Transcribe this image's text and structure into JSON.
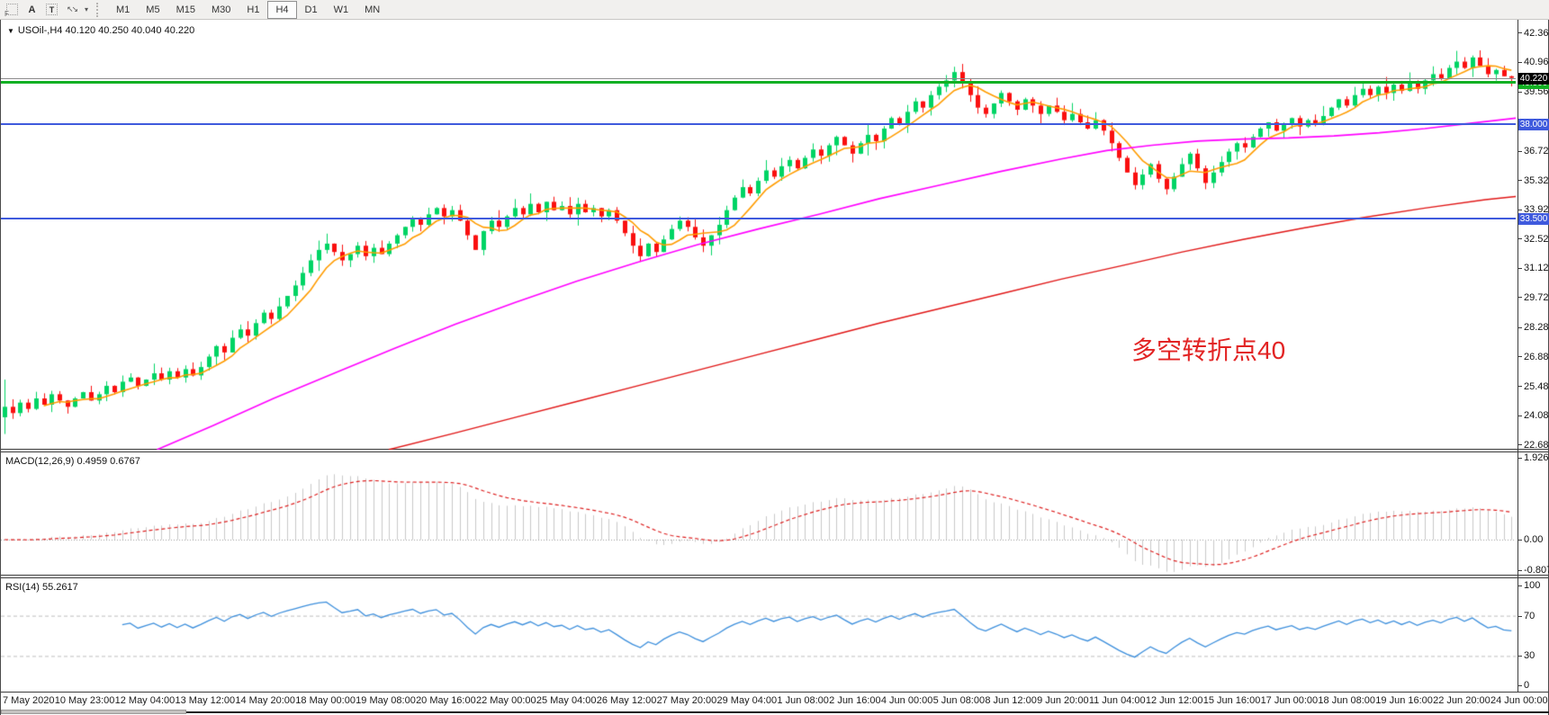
{
  "toolbar": {
    "icon_f_label": "F",
    "text_tool_label": "A",
    "textbox_tool_label": "T",
    "timeframes": [
      {
        "label": "M1",
        "selected": false
      },
      {
        "label": "M5",
        "selected": false
      },
      {
        "label": "M15",
        "selected": false
      },
      {
        "label": "M30",
        "selected": false
      },
      {
        "label": "H1",
        "selected": false
      },
      {
        "label": "H4",
        "selected": true
      },
      {
        "label": "D1",
        "selected": false
      },
      {
        "label": "W1",
        "selected": false
      },
      {
        "label": "MN",
        "selected": false
      }
    ]
  },
  "chart": {
    "title": "USOil-,H4  40.120 40.250 40.040 40.220",
    "annotation": {
      "text": "多空转折点40",
      "color": "#e22424"
    }
  },
  "macd": {
    "label": "MACD(12,26,9) 0.4959 0.6767",
    "axis_labels": [
      "1.9265",
      "0.00",
      "-0.8071"
    ]
  },
  "rsi": {
    "label": "RSI(14) 55.2617",
    "axis_labels": [
      "100",
      "70",
      "30",
      "0"
    ]
  },
  "chart_data": {
    "type": "candlestick",
    "symbol": "USOil",
    "timeframe": "H4",
    "ohlc_current": {
      "open": 40.12,
      "high": 40.25,
      "low": 40.04,
      "close": 40.22
    },
    "price_scale": {
      "top_price": 43.0,
      "bottom_price": 22.45
    },
    "price_ticks": [
      "42.360",
      "40.960",
      "39.560",
      "36.720",
      "35.320",
      "33.920",
      "32.520",
      "31.120",
      "29.720",
      "28.280",
      "26.880",
      "25.480",
      "24.080",
      "22.680"
    ],
    "levels": [
      {
        "label": "40.000",
        "value": 40.0,
        "color": "#12b023",
        "thickness": 3
      },
      {
        "label": "38.000",
        "value": 38.0,
        "color": "#3f5add",
        "thickness": 2
      },
      {
        "label": "33.500",
        "value": 33.5,
        "color": "#3f5add",
        "thickness": 2
      }
    ],
    "bid": {
      "label": "40.220",
      "value": 40.22,
      "line_color": "#8b8b8b",
      "badge_bg": "#000000"
    },
    "colors": {
      "up": "#00d464",
      "down": "#fa0f0f",
      "ma_fast": "#ff9c00",
      "ma_mid": "#ff00ff",
      "ma_slow": "#e01616",
      "macd_hist": "#c9c9c9",
      "macd_signal": "#dd2020",
      "rsi_line": "#3d8fdc",
      "dash_level": "#bdbdbd"
    },
    "closes": [
      24.5,
      24.2,
      24.7,
      24.4,
      24.9,
      24.6,
      25.1,
      24.8,
      24.5,
      24.9,
      25.2,
      24.8,
      25.1,
      25.5,
      25.2,
      25.7,
      25.9,
      25.5,
      25.8,
      26.1,
      25.8,
      26.2,
      25.9,
      26.3,
      26.0,
      26.4,
      26.9,
      27.4,
      27.1,
      27.8,
      28.2,
      27.9,
      28.5,
      29.0,
      28.7,
      29.3,
      29.8,
      30.3,
      30.9,
      31.5,
      32.0,
      32.3,
      31.9,
      31.5,
      31.8,
      32.2,
      31.7,
      32.1,
      31.8,
      32.3,
      32.7,
      33.1,
      33.5,
      33.2,
      33.7,
      34.0,
      33.6,
      33.9,
      33.4,
      32.7,
      32.0,
      32.9,
      33.4,
      33.1,
      33.6,
      34.0,
      33.7,
      34.2,
      33.8,
      34.3,
      33.9,
      34.1,
      33.7,
      34.2,
      33.8,
      34.0,
      33.6,
      33.9,
      33.4,
      32.8,
      32.2,
      31.7,
      32.3,
      31.9,
      32.5,
      33.0,
      33.4,
      33.1,
      32.6,
      32.2,
      32.7,
      33.2,
      33.9,
      34.5,
      35.0,
      34.7,
      35.3,
      35.8,
      35.5,
      36.0,
      36.3,
      35.9,
      36.4,
      36.8,
      36.5,
      37.0,
      37.4,
      37.0,
      36.6,
      37.1,
      37.5,
      37.2,
      37.8,
      38.3,
      38.0,
      38.6,
      39.1,
      38.8,
      39.4,
      39.8,
      40.1,
      40.5,
      40.0,
      39.4,
      38.8,
      38.5,
      39.0,
      39.5,
      39.1,
      38.7,
      39.2,
      38.9,
      38.5,
      38.9,
      38.6,
      38.2,
      38.5,
      38.1,
      37.8,
      38.2,
      37.7,
      37.1,
      36.4,
      35.7,
      35.1,
      35.6,
      36.1,
      35.4,
      34.9,
      35.5,
      36.1,
      36.6,
      35.9,
      35.2,
      35.7,
      36.2,
      36.7,
      37.1,
      36.9,
      37.4,
      37.8,
      38.1,
      37.7,
      38.0,
      38.3,
      37.9,
      38.2,
      38.0,
      38.4,
      38.8,
      39.2,
      38.9,
      39.4,
      39.7,
      39.4,
      39.8,
      39.5,
      39.9,
      39.6,
      40.0,
      39.7,
      40.1,
      40.4,
      40.2,
      40.7,
      41.0,
      40.7,
      41.2,
      40.8,
      40.4,
      40.6,
      40.3,
      40.22
    ],
    "first_candle": {
      "open": 24.0,
      "high": 25.8,
      "low": 23.2
    },
    "ma_fast_period": 6,
    "ma_mid_points": [
      [
        0.103,
        22.45
      ],
      [
        0.14,
        23.6
      ],
      [
        0.18,
        24.9
      ],
      [
        0.22,
        26.1
      ],
      [
        0.26,
        27.3
      ],
      [
        0.3,
        28.45
      ],
      [
        0.34,
        29.5
      ],
      [
        0.38,
        30.5
      ],
      [
        0.42,
        31.4
      ],
      [
        0.46,
        32.25
      ],
      [
        0.5,
        33.0
      ],
      [
        0.54,
        33.7
      ],
      [
        0.58,
        34.45
      ],
      [
        0.62,
        35.1
      ],
      [
        0.66,
        35.75
      ],
      [
        0.7,
        36.35
      ],
      [
        0.73,
        36.75
      ],
      [
        0.76,
        37.0
      ],
      [
        0.79,
        37.2
      ],
      [
        0.82,
        37.3
      ],
      [
        0.85,
        37.35
      ],
      [
        0.88,
        37.45
      ],
      [
        0.91,
        37.6
      ],
      [
        0.94,
        37.8
      ],
      [
        0.97,
        38.05
      ],
      [
        1.0,
        38.3
      ]
    ],
    "ma_slow_points": [
      [
        0.256,
        22.45
      ],
      [
        0.3,
        23.25
      ],
      [
        0.34,
        24.0
      ],
      [
        0.38,
        24.75
      ],
      [
        0.42,
        25.5
      ],
      [
        0.46,
        26.25
      ],
      [
        0.5,
        27.0
      ],
      [
        0.54,
        27.75
      ],
      [
        0.58,
        28.5
      ],
      [
        0.62,
        29.2
      ],
      [
        0.66,
        29.9
      ],
      [
        0.7,
        30.6
      ],
      [
        0.74,
        31.25
      ],
      [
        0.78,
        31.9
      ],
      [
        0.82,
        32.5
      ],
      [
        0.86,
        33.05
      ],
      [
        0.9,
        33.55
      ],
      [
        0.94,
        34.0
      ],
      [
        0.98,
        34.4
      ],
      [
        1.0,
        34.55
      ]
    ],
    "macd_params": "12,26,9",
    "macd_current": {
      "main": 0.4959,
      "signal": 0.6767
    },
    "rsi_period": 14,
    "rsi_current": 55.2617,
    "rsi_guides": [
      70,
      30
    ],
    "time_labels": [
      "7 May 2020",
      "10 May 23:00",
      "12 May 04:00",
      "13 May 12:00",
      "14 May 20:00",
      "18 May 00:00",
      "19 May 08:00",
      "20 May 16:00",
      "22 May 00:00",
      "25 May 04:00",
      "26 May 12:00",
      "27 May 20:00",
      "29 May 04:00",
      "1 Jun 08:00",
      "2 Jun 16:00",
      "4 Jun 00:00",
      "5 Jun 08:00",
      "8 Jun 12:00",
      "9 Jun 20:00",
      "11 Jun 04:00",
      "12 Jun 12:00",
      "15 Jun 16:00",
      "17 Jun 00:00",
      "18 Jun 08:00",
      "19 Jun 16:00",
      "22 Jun 20:00",
      "24 Jun 00:00"
    ]
  }
}
